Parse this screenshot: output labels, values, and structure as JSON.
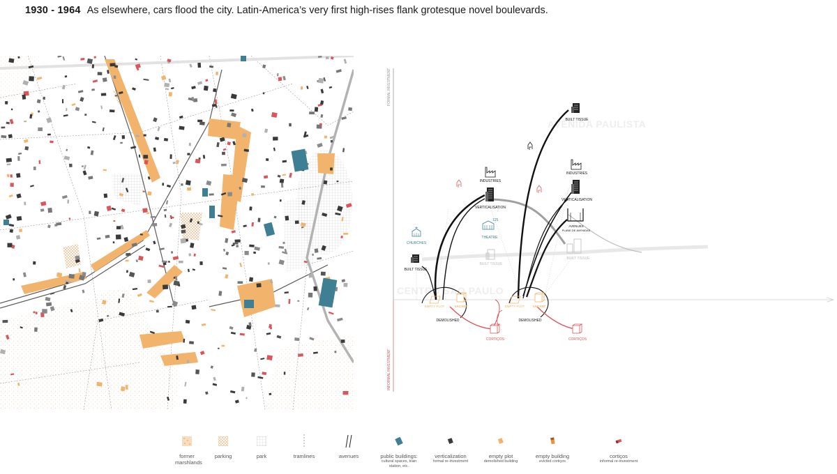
{
  "header": {
    "years": "1930 - 1964",
    "caption": "As elsewhere, cars flood the city. Latin-America’s very first high-rises flank grotesque novel boulevards."
  },
  "diagram": {
    "axis_top": "FORMAL INVESTMENT",
    "axis_bottom": "INFORMAL INVESTMENT",
    "places": {
      "centro": "CENTRO SÃO PAULO",
      "paulista": "AVENIDA PAULISTA"
    },
    "nodes": {
      "built_tissue_left": "BUILT TISSUE",
      "churches": "CHURCHES",
      "industries_1": "INDUSTRIES",
      "verticalisation_1": "VERTICALISATION",
      "theatre": "THEATRE",
      "built_tissue_faded_1": "BUILT TISSUE",
      "empty_plot_1": "EMPTY PLOT",
      "vacant_1": "VACANT",
      "demolished_1": "DEMOLISHED",
      "corticos_1": "CORTIÇOS",
      "built_tissue_top": "BUILT TISSUE",
      "industries_2": "INDUSTRIES",
      "verticalisation_2": "VERTICALISATION",
      "avenues": "AVENUES",
      "avenues_sub": "PLANE DE AVENIDAS",
      "built_tissue_faded_2": "BUILT TISSUE",
      "empty_plot_2": "EMPTY PLOT",
      "vacant_2": "VACANT",
      "demolished_2": "DEMOLISHED",
      "corticos_2": "CORTIÇOS"
    }
  },
  "legend": [
    {
      "key": "former_marshlands",
      "label": "former marshlands",
      "sub": ""
    },
    {
      "key": "parking",
      "label": "parking",
      "sub": ""
    },
    {
      "key": "park",
      "label": "park",
      "sub": ""
    },
    {
      "key": "tramlines",
      "label": "tramlines",
      "sub": ""
    },
    {
      "key": "avenues",
      "label": "avenues",
      "sub": ""
    },
    {
      "key": "public_buildings",
      "label": "public buildings:",
      "sub": "cultural spaces, train station, etc."
    },
    {
      "key": "verticalization",
      "label": "verticalization",
      "sub": "formal re-investment"
    },
    {
      "key": "empty_plot",
      "label": "empty plot",
      "sub": "demolished building"
    },
    {
      "key": "empty_building",
      "label": "empty building",
      "sub": "evicted cortiços"
    },
    {
      "key": "corticos",
      "label": "cortiços",
      "sub": "informal re-investment"
    }
  ],
  "colors": {
    "orange": "#f2b46c",
    "teal": "#3f7f93",
    "red": "#d9575c",
    "dark": "#3a3a3a",
    "grey": "#bdbdbd"
  }
}
